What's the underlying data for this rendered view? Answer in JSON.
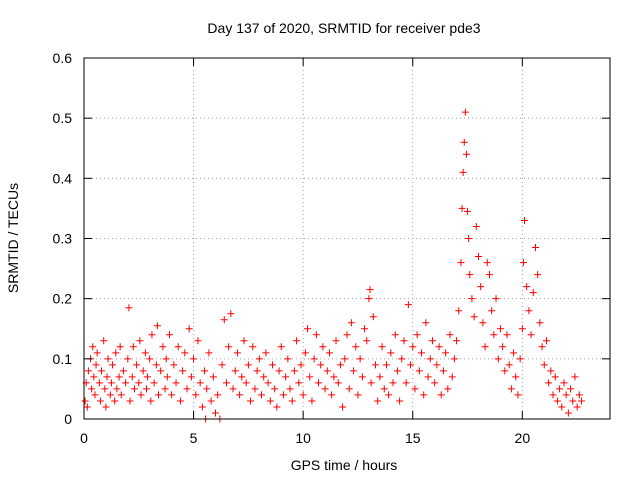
{
  "chart_data": {
    "type": "scatter",
    "title": "Day 137 of 2020, SRMTID for receiver pde3",
    "xlabel": "GPS time / hours",
    "ylabel": "SRMTID / TECUs",
    "xlim": [
      0,
      24
    ],
    "ylim": [
      0,
      0.6
    ],
    "x_ticks": [
      0,
      5,
      10,
      15,
      20
    ],
    "x_tick_labels": [
      "0",
      "5",
      "10",
      "15",
      "20"
    ],
    "y_ticks": [
      0,
      0.1,
      0.2,
      0.3,
      0.4,
      0.5,
      0.6
    ],
    "y_tick_labels": [
      "0",
      "0.1",
      "0.2",
      "0.3",
      "0.4",
      "0.5",
      "0.6"
    ],
    "grid": true,
    "marker": "+",
    "series": [
      {
        "name": "SRMTID",
        "color": "#ff0000",
        "points": [
          [
            0.05,
            0.03
          ],
          [
            0.1,
            0.06
          ],
          [
            0.15,
            0.02
          ],
          [
            0.2,
            0.08
          ],
          [
            0.3,
            0.1
          ],
          [
            0.35,
            0.05
          ],
          [
            0.4,
            0.12
          ],
          [
            0.45,
            0.07
          ],
          [
            0.5,
            0.04
          ],
          [
            0.55,
            0.09
          ],
          [
            0.6,
            0.11
          ],
          [
            0.7,
            0.06
          ],
          [
            0.75,
            0.03
          ],
          [
            0.8,
            0.08
          ],
          [
            0.9,
            0.13
          ],
          [
            0.95,
            0.05
          ],
          [
            1.0,
            0.02
          ],
          [
            1.05,
            0.07
          ],
          [
            1.1,
            0.1
          ],
          [
            1.2,
            0.04
          ],
          [
            1.25,
            0.06
          ],
          [
            1.3,
            0.09
          ],
          [
            1.4,
            0.03
          ],
          [
            1.45,
            0.11
          ],
          [
            1.5,
            0.05
          ],
          [
            1.6,
            0.07
          ],
          [
            1.65,
            0.12
          ],
          [
            1.7,
            0.04
          ],
          [
            1.8,
            0.08
          ],
          [
            1.9,
            0.06
          ],
          [
            2.0,
            0.1
          ],
          [
            2.05,
            0.185
          ],
          [
            2.1,
            0.03
          ],
          [
            2.2,
            0.07
          ],
          [
            2.25,
            0.12
          ],
          [
            2.3,
            0.05
          ],
          [
            2.4,
            0.09
          ],
          [
            2.5,
            0.06
          ],
          [
            2.55,
            0.13
          ],
          [
            2.6,
            0.04
          ],
          [
            2.7,
            0.08
          ],
          [
            2.8,
            0.11
          ],
          [
            2.85,
            0.05
          ],
          [
            2.9,
            0.07
          ],
          [
            3.0,
            0.1
          ],
          [
            3.05,
            0.03
          ],
          [
            3.1,
            0.14
          ],
          [
            3.2,
            0.06
          ],
          [
            3.3,
            0.09
          ],
          [
            3.35,
            0.155
          ],
          [
            3.4,
            0.04
          ],
          [
            3.5,
            0.08
          ],
          [
            3.6,
            0.12
          ],
          [
            3.7,
            0.05
          ],
          [
            3.75,
            0.1
          ],
          [
            3.8,
            0.07
          ],
          [
            3.9,
            0.14
          ],
          [
            4.0,
            0.04
          ],
          [
            4.1,
            0.09
          ],
          [
            4.2,
            0.06
          ],
          [
            4.3,
            0.12
          ],
          [
            4.4,
            0.03
          ],
          [
            4.5,
            0.08
          ],
          [
            4.6,
            0.11
          ],
          [
            4.7,
            0.05
          ],
          [
            4.8,
            0.15
          ],
          [
            4.9,
            0.07
          ],
          [
            5.0,
            0.1
          ],
          [
            5.1,
            0.04
          ],
          [
            5.2,
            0.13
          ],
          [
            5.3,
            0.06
          ],
          [
            5.4,
            0.02
          ],
          [
            5.5,
            0.08
          ],
          [
            5.55,
            0.0
          ],
          [
            5.6,
            0.05
          ],
          [
            5.7,
            0.11
          ],
          [
            5.8,
            0.03
          ],
          [
            5.9,
            0.07
          ],
          [
            6.0,
            0.01
          ],
          [
            6.1,
            0.04
          ],
          [
            6.2,
            0.0
          ],
          [
            6.3,
            0.09
          ],
          [
            6.4,
            0.165
          ],
          [
            6.5,
            0.06
          ],
          [
            6.6,
            0.12
          ],
          [
            6.7,
            0.175
          ],
          [
            6.8,
            0.05
          ],
          [
            6.9,
            0.08
          ],
          [
            7.0,
            0.11
          ],
          [
            7.1,
            0.04
          ],
          [
            7.2,
            0.07
          ],
          [
            7.3,
            0.13
          ],
          [
            7.4,
            0.06
          ],
          [
            7.5,
            0.09
          ],
          [
            7.6,
            0.03
          ],
          [
            7.7,
            0.12
          ],
          [
            7.8,
            0.05
          ],
          [
            7.9,
            0.08
          ],
          [
            8.0,
            0.1
          ],
          [
            8.1,
            0.04
          ],
          [
            8.2,
            0.07
          ],
          [
            8.3,
            0.11
          ],
          [
            8.4,
            0.06
          ],
          [
            8.5,
            0.03
          ],
          [
            8.6,
            0.09
          ],
          [
            8.7,
            0.05
          ],
          [
            8.8,
            0.02
          ],
          [
            8.9,
            0.08
          ],
          [
            9.0,
            0.12
          ],
          [
            9.1,
            0.04
          ],
          [
            9.2,
            0.07
          ],
          [
            9.3,
            0.1
          ],
          [
            9.4,
            0.05
          ],
          [
            9.5,
            0.03
          ],
          [
            9.6,
            0.08
          ],
          [
            9.7,
            0.13
          ],
          [
            9.8,
            0.06
          ],
          [
            9.9,
            0.09
          ],
          [
            10.0,
            0.04
          ],
          [
            10.1,
            0.11
          ],
          [
            10.2,
            0.15
          ],
          [
            10.3,
            0.07
          ],
          [
            10.4,
            0.03
          ],
          [
            10.5,
            0.1
          ],
          [
            10.6,
            0.14
          ],
          [
            10.7,
            0.06
          ],
          [
            10.8,
            0.09
          ],
          [
            10.9,
            0.12
          ],
          [
            11.0,
            0.05
          ],
          [
            11.1,
            0.08
          ],
          [
            11.2,
            0.11
          ],
          [
            11.3,
            0.04
          ],
          [
            11.4,
            0.07
          ],
          [
            11.5,
            0.13
          ],
          [
            11.6,
            0.06
          ],
          [
            11.7,
            0.09
          ],
          [
            11.8,
            0.02
          ],
          [
            11.9,
            0.1
          ],
          [
            12.0,
            0.14
          ],
          [
            12.1,
            0.05
          ],
          [
            12.2,
            0.16
          ],
          [
            12.3,
            0.08
          ],
          [
            12.4,
            0.12
          ],
          [
            12.5,
            0.04
          ],
          [
            12.6,
            0.1
          ],
          [
            12.7,
            0.07
          ],
          [
            12.8,
            0.15
          ],
          [
            12.9,
            0.13
          ],
          [
            13.0,
            0.2
          ],
          [
            13.05,
            0.215
          ],
          [
            13.1,
            0.06
          ],
          [
            13.2,
            0.17
          ],
          [
            13.3,
            0.09
          ],
          [
            13.4,
            0.03
          ],
          [
            13.5,
            0.07
          ],
          [
            13.6,
            0.12
          ],
          [
            13.7,
            0.05
          ],
          [
            13.8,
            0.09
          ],
          [
            13.9,
            0.04
          ],
          [
            14.0,
            0.11
          ],
          [
            14.1,
            0.06
          ],
          [
            14.2,
            0.14
          ],
          [
            14.3,
            0.08
          ],
          [
            14.4,
            0.03
          ],
          [
            14.5,
            0.1
          ],
          [
            14.6,
            0.13
          ],
          [
            14.7,
            0.06
          ],
          [
            14.8,
            0.19
          ],
          [
            14.9,
            0.09
          ],
          [
            15.0,
            0.12
          ],
          [
            15.1,
            0.05
          ],
          [
            15.2,
            0.14
          ],
          [
            15.3,
            0.08
          ],
          [
            15.4,
            0.11
          ],
          [
            15.5,
            0.04
          ],
          [
            15.6,
            0.16
          ],
          [
            15.7,
            0.07
          ],
          [
            15.8,
            0.1
          ],
          [
            15.9,
            0.13
          ],
          [
            16.0,
            0.06
          ],
          [
            16.1,
            0.09
          ],
          [
            16.2,
            0.12
          ],
          [
            16.3,
            0.04
          ],
          [
            16.4,
            0.08
          ],
          [
            16.5,
            0.11
          ],
          [
            16.6,
            0.05
          ],
          [
            16.7,
            0.14
          ],
          [
            16.8,
            0.07
          ],
          [
            16.9,
            0.1
          ],
          [
            17.0,
            0.13
          ],
          [
            17.1,
            0.18
          ],
          [
            17.2,
            0.26
          ],
          [
            17.25,
            0.35
          ],
          [
            17.3,
            0.41
          ],
          [
            17.35,
            0.46
          ],
          [
            17.4,
            0.51
          ],
          [
            17.45,
            0.44
          ],
          [
            17.5,
            0.345
          ],
          [
            17.55,
            0.3
          ],
          [
            17.6,
            0.24
          ],
          [
            17.7,
            0.2
          ],
          [
            17.8,
            0.17
          ],
          [
            17.9,
            0.32
          ],
          [
            18.0,
            0.27
          ],
          [
            18.1,
            0.22
          ],
          [
            18.2,
            0.16
          ],
          [
            18.3,
            0.12
          ],
          [
            18.4,
            0.26
          ],
          [
            18.5,
            0.24
          ],
          [
            18.6,
            0.18
          ],
          [
            18.7,
            0.14
          ],
          [
            18.8,
            0.2
          ],
          [
            18.9,
            0.1
          ],
          [
            19.0,
            0.15
          ],
          [
            19.1,
            0.12
          ],
          [
            19.2,
            0.08
          ],
          [
            19.3,
            0.14
          ],
          [
            19.4,
            0.09
          ],
          [
            19.5,
            0.05
          ],
          [
            19.6,
            0.11
          ],
          [
            19.7,
            0.07
          ],
          [
            19.8,
            0.04
          ],
          [
            19.9,
            0.1
          ],
          [
            20.0,
            0.15
          ],
          [
            20.05,
            0.26
          ],
          [
            20.1,
            0.33
          ],
          [
            20.2,
            0.22
          ],
          [
            20.3,
            0.18
          ],
          [
            20.4,
            0.14
          ],
          [
            20.5,
            0.21
          ],
          [
            20.6,
            0.285
          ],
          [
            20.7,
            0.24
          ],
          [
            20.8,
            0.16
          ],
          [
            20.9,
            0.12
          ],
          [
            21.0,
            0.09
          ],
          [
            21.1,
            0.13
          ],
          [
            21.2,
            0.06
          ],
          [
            21.3,
            0.08
          ],
          [
            21.4,
            0.04
          ],
          [
            21.5,
            0.07
          ],
          [
            21.6,
            0.03
          ],
          [
            21.7,
            0.05
          ],
          [
            21.8,
            0.02
          ],
          [
            21.9,
            0.06
          ],
          [
            22.0,
            0.04
          ],
          [
            22.1,
            0.01
          ],
          [
            22.2,
            0.05
          ],
          [
            22.3,
            0.03
          ],
          [
            22.4,
            0.07
          ],
          [
            22.5,
            0.02
          ],
          [
            22.6,
            0.04
          ],
          [
            22.7,
            0.03
          ]
        ]
      }
    ]
  }
}
